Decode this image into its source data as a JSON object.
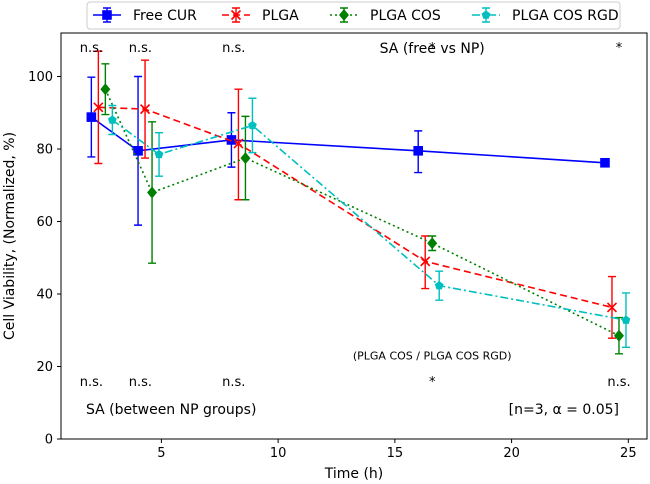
{
  "chart_data": {
    "type": "line",
    "xlabel": "Time (h)",
    "ylabel": "Cell Viability, (Normalized, %)",
    "xlim": [
      0.7,
      25.8
    ],
    "ylim": [
      0,
      112
    ],
    "xticks": [
      5,
      10,
      15,
      20,
      25
    ],
    "yticks": [
      0,
      20,
      40,
      60,
      80,
      100
    ],
    "grid": false,
    "legend_position": "top-center (outside)",
    "series": [
      {
        "name": "Free CUR",
        "color": "#0000ff",
        "linestyle": "solid",
        "marker": "square",
        "x": [
          2,
          4,
          8,
          16,
          24
        ],
        "y": [
          88.8,
          79.5,
          82.5,
          79.5,
          76.2
        ],
        "err_low": [
          11,
          20.5,
          7.5,
          6,
          0
        ],
        "err_high": [
          11,
          20.5,
          7.5,
          5.5,
          0
        ]
      },
      {
        "name": "PLGA",
        "color": "#ff0000",
        "linestyle": "dashed",
        "marker": "x",
        "x": [
          2.3,
          4.3,
          8.3,
          16.3,
          24.3
        ],
        "y": [
          91.5,
          91,
          81.5,
          49,
          36.3
        ],
        "err_low": [
          15.5,
          13.5,
          15.5,
          7.5,
          8.5
        ],
        "err_high": [
          15.5,
          13.5,
          15,
          7,
          8.5
        ]
      },
      {
        "name": "PLGA COS",
        "color": "#008000",
        "linestyle": "dotted",
        "marker": "diamond",
        "x": [
          2.6,
          4.6,
          8.6,
          16.6,
          24.6
        ],
        "y": [
          96.5,
          68,
          77.5,
          54,
          28.5
        ],
        "err_low": [
          7,
          19.5,
          11.5,
          2,
          5
        ],
        "err_high": [
          7,
          19.5,
          11.5,
          2,
          5
        ]
      },
      {
        "name": "PLGA COS RGD",
        "color": "#00bfbf",
        "linestyle": "dashdot",
        "marker": "pentagon",
        "x": [
          2.9,
          4.9,
          8.9,
          16.9,
          24.9
        ],
        "y": [
          88,
          78.5,
          86.5,
          42.3,
          32.8
        ],
        "err_low": [
          4,
          6,
          7.5,
          4,
          7.5
        ],
        "err_high": [
          4,
          6,
          7.5,
          4,
          7.5
        ]
      }
    ],
    "annotations": {
      "top_row": [
        {
          "x": 2,
          "text": "n.s."
        },
        {
          "x": 4.1,
          "text": "n.s."
        },
        {
          "x": 8.1,
          "text": "n.s."
        },
        {
          "x": 16.6,
          "text": "*"
        },
        {
          "x": 24.6,
          "text": "*"
        }
      ],
      "top_label": {
        "text": "SA (free vs NP)",
        "x": 16.6,
        "y": 106.5
      },
      "bottom_note": {
        "text": "(PLGA COS / PLGA COS RGD)",
        "x": 16.6,
        "y": 22
      },
      "bottom_row": [
        {
          "x": 2,
          "text": "n.s."
        },
        {
          "x": 4.1,
          "text": "n.s."
        },
        {
          "x": 8.1,
          "text": "n.s."
        },
        {
          "x": 16.6,
          "text": "*"
        },
        {
          "x": 24.6,
          "text": "n.s."
        }
      ],
      "bottom_left_label": "SA (between NP groups)",
      "bottom_right_label": "[n=3, α = 0.05]"
    }
  }
}
